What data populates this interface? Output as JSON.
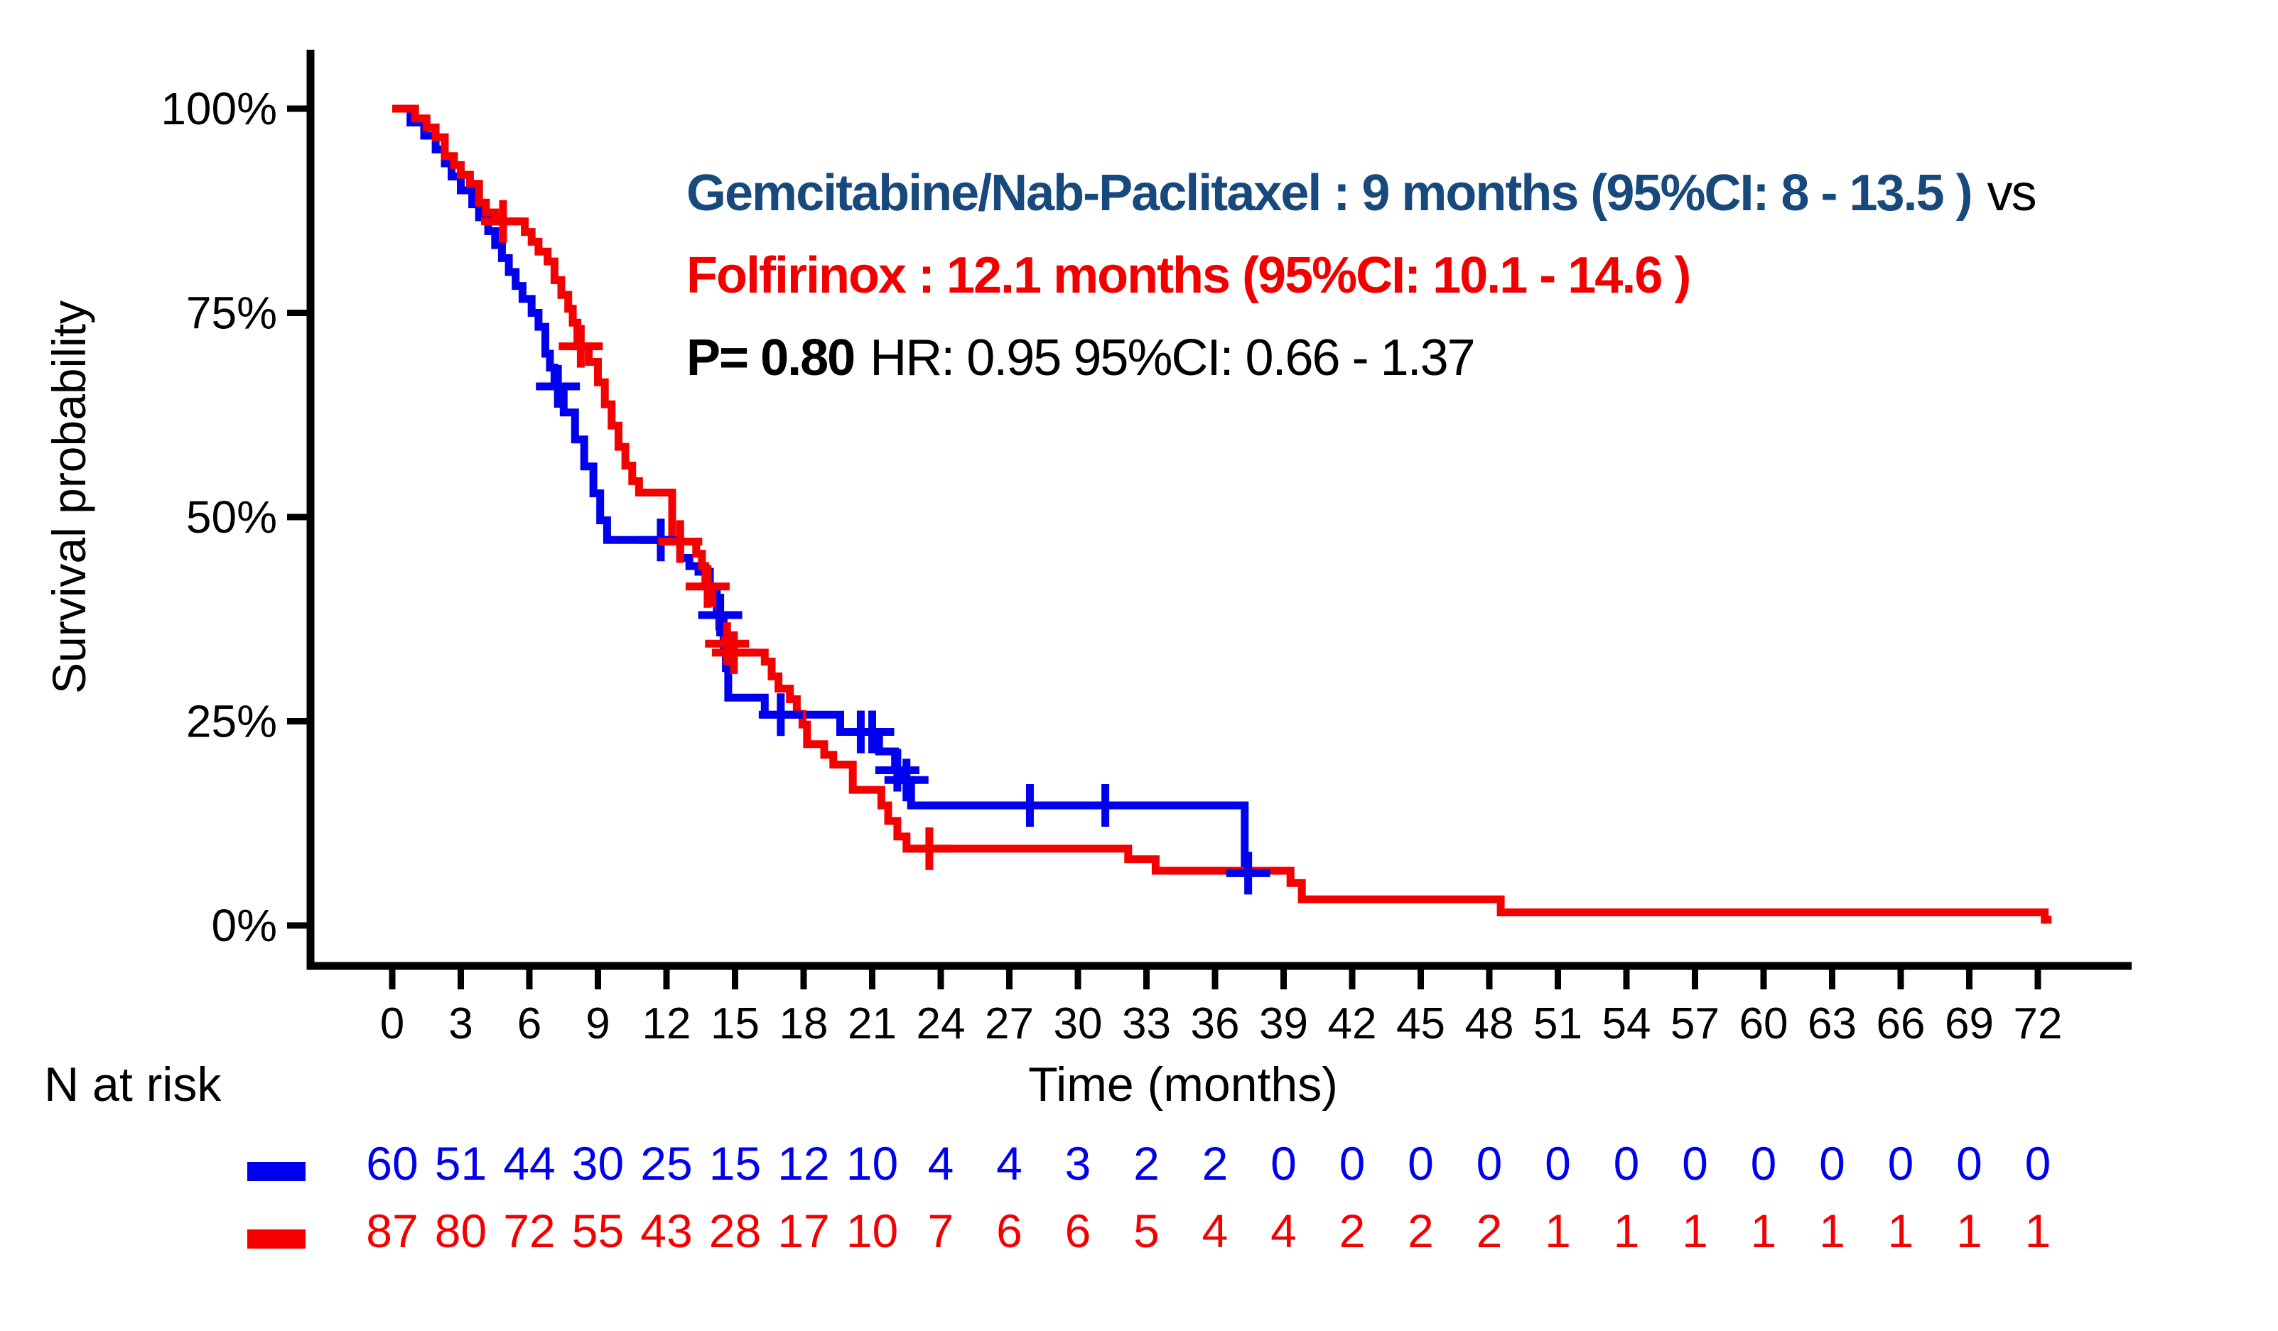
{
  "annotation": {
    "line1_main": "Gemcitabine/Nab-Paclitaxel : 9 months (95%CI: 8 - 13.5 )",
    "line1_suffix": "vs",
    "line2": "Folfirinox : 12.1 months (95%CI: 10.1 - 14.6 )",
    "line3_bold": "P= 0.80",
    "line3_rest": "HR: 0.95 95%CI: 0.66 - 1.37"
  },
  "colors": {
    "blue_curve": "#0000EE",
    "red_curve": "#F40000",
    "annotation_blue": "#17497D",
    "annotation_red": "#F20000",
    "axis_black": "#000000"
  },
  "n_at_risk": {
    "label": "N at risk",
    "rows": [
      {
        "name": "Gemcitabine/Nab-Paclitaxel",
        "color": "#0000EE",
        "counts": [
          60,
          51,
          44,
          30,
          25,
          15,
          12,
          10,
          4,
          4,
          3,
          2,
          2,
          0,
          0,
          0,
          0,
          0,
          0,
          0,
          0,
          0,
          0,
          0,
          0
        ]
      },
      {
        "name": "Folfirinox",
        "color": "#F40000",
        "counts": [
          87,
          80,
          72,
          55,
          43,
          28,
          17,
          10,
          7,
          6,
          6,
          5,
          4,
          4,
          2,
          2,
          2,
          1,
          1,
          1,
          1,
          1,
          1,
          1,
          1
        ]
      }
    ]
  },
  "chart_data": {
    "type": "line",
    "subtype": "kaplan-meier-step",
    "title": "",
    "xlabel": "Time (months)",
    "ylabel": "Survival probability",
    "xlim": [
      0,
      76
    ],
    "ylim": [
      0,
      100
    ],
    "grid": false,
    "x_ticks": [
      0,
      3,
      6,
      9,
      12,
      15,
      18,
      21,
      24,
      27,
      30,
      33,
      36,
      39,
      42,
      45,
      48,
      51,
      54,
      57,
      60,
      63,
      66,
      69,
      72
    ],
    "y_ticks": [
      {
        "label": "100%",
        "value": 100
      },
      {
        "label": "75%",
        "value": 75
      },
      {
        "label": "50%",
        "value": 50
      },
      {
        "label": "25%",
        "value": 25
      },
      {
        "label": "0%",
        "value": 0
      }
    ],
    "series": [
      {
        "name": "Gemcitabine/Nab-Paclitaxel",
        "median_months": 9,
        "ci": "8 - 13.5",
        "color": "#0000EE",
        "end_time": 37.7,
        "steps": [
          [
            0,
            100
          ],
          [
            0.8,
            98.3
          ],
          [
            1.4,
            96.7
          ],
          [
            1.9,
            95
          ],
          [
            2.3,
            93.3
          ],
          [
            2.6,
            91.7
          ],
          [
            3,
            90
          ],
          [
            3.5,
            88.3
          ],
          [
            3.8,
            86.7
          ],
          [
            4.2,
            85
          ],
          [
            4.5,
            83.3
          ],
          [
            4.8,
            81.7
          ],
          [
            5.1,
            80
          ],
          [
            5.4,
            78.3
          ],
          [
            5.7,
            76.7
          ],
          [
            6.1,
            75
          ],
          [
            6.4,
            73.3
          ],
          [
            6.7,
            70
          ],
          [
            6.9,
            68.3
          ],
          [
            7.1,
            66
          ],
          [
            7.5,
            62.8
          ],
          [
            8,
            59.5
          ],
          [
            8.4,
            56.2
          ],
          [
            8.8,
            52.9
          ],
          [
            9.1,
            49.6
          ],
          [
            9.4,
            47.2
          ],
          [
            12.6,
            45
          ],
          [
            13,
            44
          ],
          [
            13.4,
            43.3
          ],
          [
            13.9,
            41
          ],
          [
            14.2,
            38
          ],
          [
            14.5,
            34
          ],
          [
            14.6,
            31.5
          ],
          [
            14.7,
            27.9
          ],
          [
            16.3,
            25.8
          ],
          [
            19.6,
            23.7
          ],
          [
            21.3,
            21.3
          ],
          [
            22,
            19
          ],
          [
            22.35,
            17.8
          ],
          [
            22.7,
            14.7
          ],
          [
            37.3,
            6.4
          ]
        ],
        "censors": [
          [
            7.25,
            66
          ],
          [
            11.75,
            47.2
          ],
          [
            14.35,
            38
          ],
          [
            17,
            25.8
          ],
          [
            20.5,
            23.7
          ],
          [
            21,
            23.7
          ],
          [
            22.1,
            19
          ],
          [
            22.5,
            17.8
          ],
          [
            27.9,
            14.7
          ],
          [
            31.2,
            14.7
          ],
          [
            37.45,
            6.4
          ]
        ]
      },
      {
        "name": "Folfirinox",
        "median_months": 12.1,
        "ci": "10.1 - 14.6",
        "color": "#F40000",
        "end_time": 72.6,
        "steps": [
          [
            0,
            100
          ],
          [
            1,
            98.8
          ],
          [
            1.5,
            97.7
          ],
          [
            1.9,
            96.5
          ],
          [
            2.3,
            94.2
          ],
          [
            2.7,
            93.1
          ],
          [
            3,
            91.9
          ],
          [
            3.4,
            90.8
          ],
          [
            3.8,
            88.5
          ],
          [
            4.1,
            87.3
          ],
          [
            4.5,
            86.2
          ],
          [
            5.8,
            84.9
          ],
          [
            6.1,
            83.7
          ],
          [
            6.4,
            82.5
          ],
          [
            6.8,
            81.3
          ],
          [
            7.1,
            79
          ],
          [
            7.4,
            77.2
          ],
          [
            7.7,
            75.5
          ],
          [
            7.9,
            73.8
          ],
          [
            8.1,
            70.9
          ],
          [
            8.6,
            69
          ],
          [
            9,
            66.5
          ],
          [
            9.3,
            63.8
          ],
          [
            9.6,
            61.2
          ],
          [
            9.9,
            58.6
          ],
          [
            10.2,
            56.3
          ],
          [
            10.5,
            54.4
          ],
          [
            10.8,
            53
          ],
          [
            12.25,
            47
          ],
          [
            13.3,
            45.5
          ],
          [
            13.55,
            44
          ],
          [
            13.7,
            41.5
          ],
          [
            14,
            39.5
          ],
          [
            14.3,
            36.6
          ],
          [
            14.55,
            34.5
          ],
          [
            14.9,
            33.4
          ],
          [
            16.3,
            32.3
          ],
          [
            16.6,
            30.5
          ],
          [
            16.9,
            29
          ],
          [
            17.4,
            27.7
          ],
          [
            17.7,
            25.9
          ],
          [
            17.95,
            24.6
          ],
          [
            18.15,
            22.2
          ],
          [
            18.9,
            20.9
          ],
          [
            19.3,
            19.7
          ],
          [
            20.15,
            16.6
          ],
          [
            21.4,
            14.7
          ],
          [
            21.7,
            12.8
          ],
          [
            22.1,
            10.9
          ],
          [
            22.5,
            9.4
          ],
          [
            32.2,
            8.1
          ],
          [
            33.4,
            6.7
          ],
          [
            39.3,
            5.2
          ],
          [
            39.8,
            3.2
          ],
          [
            48.5,
            1.6
          ],
          [
            72.3,
            0.7
          ]
        ],
        "censors": [
          [
            4.85,
            86.2
          ],
          [
            8.25,
            70.9
          ],
          [
            12.6,
            47
          ],
          [
            13.8,
            41.5
          ],
          [
            14.65,
            34.5
          ],
          [
            14.95,
            33.4
          ],
          [
            23.5,
            9.4
          ]
        ]
      }
    ],
    "stats": {
      "p_value": "0.80",
      "hr": "0.95",
      "hr_ci": "0.66 - 1.37"
    }
  }
}
